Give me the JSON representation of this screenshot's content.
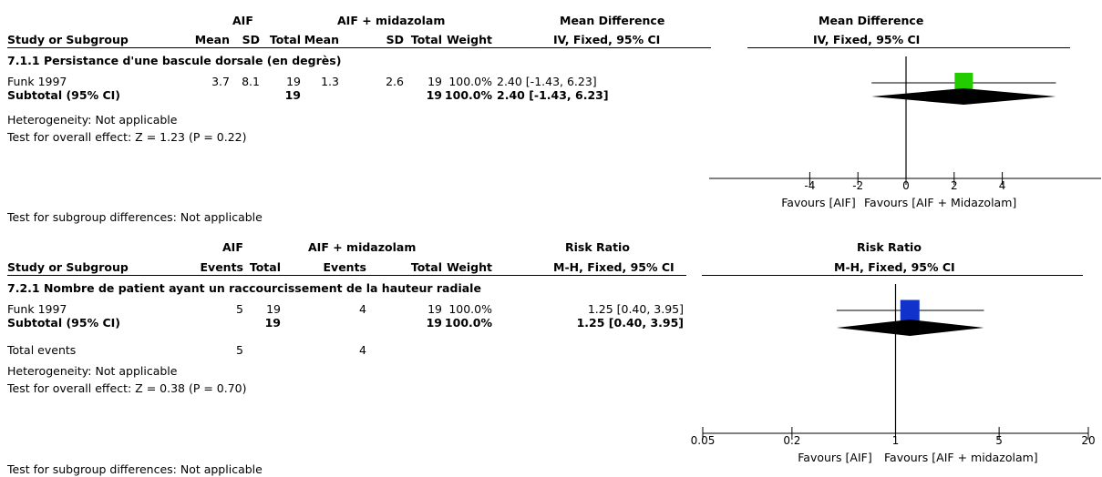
{
  "panel1": {
    "hdr_group1": "AIF",
    "hdr_group2": "AIF + midazolam",
    "hdr_effect": "Mean Difference",
    "hdr_plot": "Mean Difference",
    "col_study": "Study or Subgroup",
    "col_mean1": "Mean",
    "col_sd1": "SD",
    "col_total1": "Total",
    "col_mean2": "Mean",
    "col_sd2": "SD",
    "col_total2": "Total",
    "col_weight": "Weight",
    "col_ci": "IV, Fixed, 95% CI",
    "col_plot_ci": "IV, Fixed, 95% CI",
    "subgroup_title": "7.1.1 Persistance d'une bascule dorsale (en degrès)",
    "study": {
      "name": "Funk 1997",
      "mean1": "3.7",
      "sd1": "8.1",
      "total1": "19",
      "mean2": "1.3",
      "sd2": "2.6",
      "total2": "19",
      "weight": "100.0%",
      "ci": "2.40 [-1.43, 6.23]"
    },
    "subtotal": {
      "name": "Subtotal (95% CI)",
      "total1": "19",
      "total2": "19",
      "weight": "100.0%",
      "ci": "2.40 [-1.43, 6.23]"
    },
    "heterogeneity": "Heterogeneity: Not applicable",
    "overall": "Test for overall effect: Z = 1.23 (P = 0.22)",
    "subgroup_diff": "Test for subgroup differences: Not applicable",
    "axis_ticks": [
      "-4",
      "-2",
      "0",
      "2",
      "4"
    ],
    "favours_left": "Favours [AIF]",
    "favours_right": "Favours [AIF + Midazolam]"
  },
  "panel2": {
    "hdr_group1": "AIF",
    "hdr_group2": "AIF + midazolam",
    "hdr_effect": "Risk Ratio",
    "hdr_plot": "Risk Ratio",
    "col_study": "Study or Subgroup",
    "col_events1": "Events",
    "col_total1": "Total",
    "col_events2": "Events",
    "col_total2": "Total",
    "col_weight": "Weight",
    "col_ci": "M-H, Fixed, 95% CI",
    "col_plot_ci": "M-H, Fixed, 95% CI",
    "subgroup_title": "7.2.1 Nombre de patient ayant un raccourcissement de la hauteur radiale",
    "study": {
      "name": "Funk 1997",
      "events1": "5",
      "total1": "19",
      "events2": "4",
      "total2": "19",
      "weight": "100.0%",
      "ci": "1.25 [0.40, 3.95]"
    },
    "subtotal": {
      "name": "Subtotal (95% CI)",
      "total1": "19",
      "total2": "19",
      "weight": "100.0%",
      "ci": "1.25 [0.40, 3.95]"
    },
    "total_events": {
      "label": "Total events",
      "events1": "5",
      "events2": "4"
    },
    "heterogeneity": "Heterogeneity: Not applicable",
    "overall": "Test for overall effect: Z = 0.38 (P = 0.70)",
    "subgroup_diff": "Test for subgroup differences: Not applicable",
    "axis_ticks": [
      "0.05",
      "0.2",
      "1",
      "5",
      "20"
    ],
    "favours_left": "Favours [AIF]",
    "favours_right": "Favours [AIF + midazolam]"
  },
  "chart_data": [
    {
      "type": "forest",
      "measure": "Mean Difference",
      "scale": "linear",
      "xlim": [
        -5,
        5
      ],
      "null_value": 0,
      "ticks": [
        -4,
        -2,
        0,
        2,
        4
      ],
      "study_color": "#22cc00",
      "studies": [
        {
          "name": "Funk 1997",
          "estimate": 2.4,
          "lower": -1.43,
          "upper": 6.23,
          "weight": 100.0
        }
      ],
      "pooled": {
        "estimate": 2.4,
        "lower": -1.43,
        "upper": 6.23
      }
    },
    {
      "type": "forest",
      "measure": "Risk Ratio",
      "scale": "log",
      "xlim": [
        0.05,
        20
      ],
      "null_value": 1,
      "ticks": [
        0.05,
        0.2,
        1,
        5,
        20
      ],
      "study_color": "#1133cc",
      "studies": [
        {
          "name": "Funk 1997",
          "estimate": 1.25,
          "lower": 0.4,
          "upper": 3.95,
          "weight": 100.0
        }
      ],
      "pooled": {
        "estimate": 1.25,
        "lower": 0.4,
        "upper": 3.95
      }
    }
  ]
}
